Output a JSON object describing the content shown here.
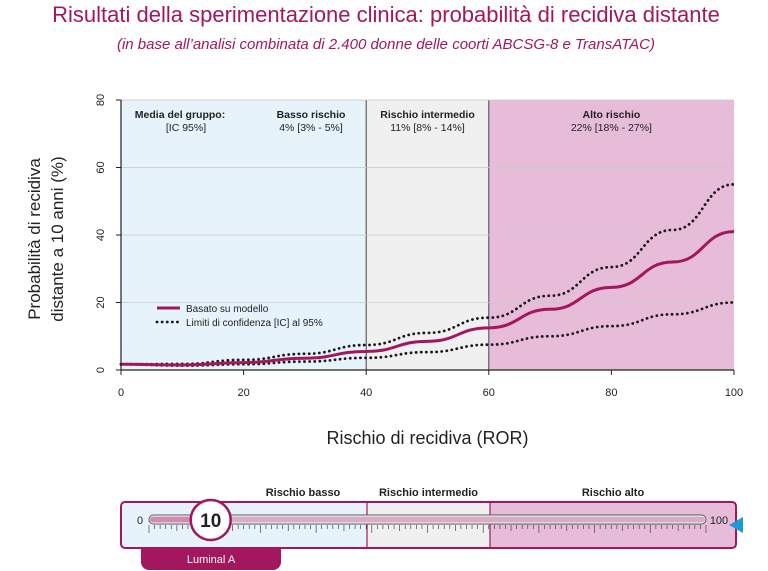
{
  "header": {
    "title": "Risultati della sperimentazione clinica: probabilità di recidiva distante",
    "subtitle": "(in base all’analisi combinata di 2.400 donne delle coorti ABCSG-8 e TransATAC)"
  },
  "chart_data": {
    "type": "line",
    "xlabel": "Rischio di recidiva (ROR)",
    "ylabel": [
      "Probabilità di recidiva",
      "distante a 10 anni (%)"
    ],
    "xlim": [
      0,
      100
    ],
    "ylim": [
      0,
      80
    ],
    "x_ticks": [
      "0",
      "20",
      "40",
      "60",
      "80",
      "100"
    ],
    "y_ticks": [
      "0",
      "20",
      "40",
      "60",
      "80"
    ],
    "grid": true,
    "legend_position": "lower-left",
    "x": [
      0,
      10,
      20,
      30,
      40,
      50,
      60,
      70,
      80,
      90,
      100
    ],
    "series": [
      {
        "name": "Basato su modello",
        "style": "solid",
        "color": "#a3175f",
        "values": [
          1.7,
          1.5,
          2.2,
          3.5,
          5.5,
          8.5,
          12.5,
          18,
          24.5,
          32,
          41
        ]
      },
      {
        "name": "Limiti di confidenza [IC] al 95%",
        "style": "dotted",
        "color": "#1a1a1a",
        "values": [
          1.7,
          1.3,
          1.7,
          2.5,
          3.6,
          5.3,
          7.5,
          10,
          13,
          16.5,
          20
        ]
      },
      {
        "name": "",
        "style": "dotted",
        "color": "#1a1a1a",
        "values": [
          1.7,
          1.8,
          3.0,
          4.8,
          7.4,
          11,
          15.5,
          22,
          30.5,
          41.5,
          55
        ]
      }
    ],
    "regions": [
      {
        "name": "Basso rischio",
        "from": 0,
        "to": 40,
        "color": "#e6f3fb"
      },
      {
        "name": "Rischio intermedio",
        "from": 40,
        "to": 60,
        "color": "#f0f0f0"
      },
      {
        "name": "Alto rischio",
        "from": 60,
        "to": 100,
        "color": "#e7bcd9"
      }
    ],
    "group_header": {
      "line1": "Media del gruppo:",
      "line2": "[IC 95%]"
    },
    "region_values": [
      "4% [3% - 5%]",
      "11% [8% - 14%]",
      "22% [18% - 27%]"
    ]
  },
  "scale": {
    "labels": [
      "Rischio basso",
      "Rischio intermedio",
      "Rischio alto"
    ],
    "min_label": "0",
    "max_label": "100",
    "score": 10,
    "score_label": "10",
    "subtype": "Luminal A",
    "marker_color": "#1e9ad6"
  },
  "colors": {
    "accent": "#a3175f",
    "low": "#e6f3fb",
    "intermediate": "#f0f0f0",
    "high": "#e7bcd9"
  }
}
